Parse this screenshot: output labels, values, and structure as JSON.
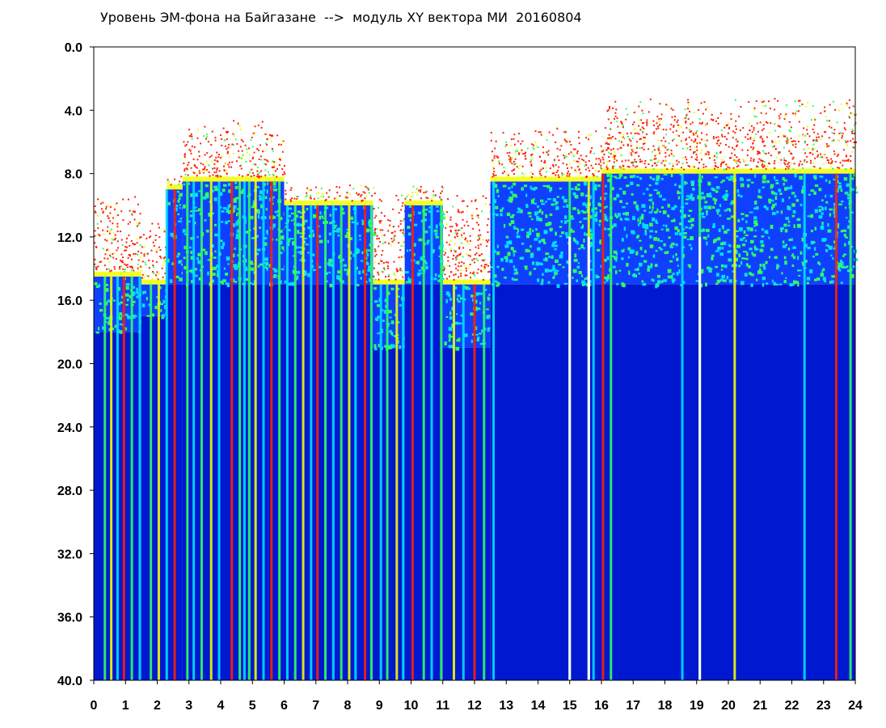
{
  "chart_data": {
    "type": "heatmap",
    "title": "Уровень ЭМ-фона на Байгазане  -->  модуль XY вектора МИ  20160804",
    "xlabel": "",
    "ylabel": "",
    "x_ticks": [
      "0",
      "1",
      "2",
      "3",
      "4",
      "5",
      "6",
      "7",
      "8",
      "9",
      "10",
      "11",
      "12",
      "13",
      "14",
      "15",
      "16",
      "17",
      "18",
      "19",
      "20",
      "21",
      "22",
      "23",
      "24"
    ],
    "y_ticks": [
      "0.0",
      "4.0",
      "8.0",
      "12.0",
      "16.0",
      "20.0",
      "24.0",
      "28.0",
      "32.0",
      "36.0",
      "40.0"
    ],
    "xlim": [
      0,
      24
    ],
    "ylim": [
      0,
      40
    ],
    "y_inverted": true,
    "colormap": [
      "#0018d0",
      "#1040ff",
      "#00e0ff",
      "#30ff60",
      "#f0ff00",
      "#ff2000"
    ],
    "background_color": "#ffffff",
    "regions": [
      {
        "x": [
          0,
          1.5
        ],
        "noise_top": 9.0,
        "green_top": 14.5,
        "blue_top": 18.0
      },
      {
        "x": [
          1.5,
          2.3
        ],
        "noise_top": 11.0,
        "green_top": 15.0,
        "blue_top": 17.0
      },
      {
        "x": [
          2.3,
          2.8
        ],
        "noise_top": 8.0,
        "green_top": 9.0,
        "blue_top": 15.0
      },
      {
        "x": [
          2.8,
          5.5
        ],
        "noise_top": 4.5,
        "green_top": 8.5,
        "blue_top": 15.0
      },
      {
        "x": [
          5.5,
          6.0
        ],
        "noise_top": 5.0,
        "green_top": 8.5,
        "blue_top": 15.0
      },
      {
        "x": [
          6.0,
          8.8
        ],
        "noise_top": 8.5,
        "green_top": 10.0,
        "blue_top": 15.0
      },
      {
        "x": [
          8.8,
          9.8
        ],
        "noise_top": 9.0,
        "green_top": 15.0,
        "blue_top": 19.0
      },
      {
        "x": [
          9.8,
          11.0
        ],
        "noise_top": 8.5,
        "green_top": 10.0,
        "blue_top": 15.0
      },
      {
        "x": [
          11.0,
          12.5
        ],
        "noise_top": 9.0,
        "green_top": 15.0,
        "blue_top": 19.0
      },
      {
        "x": [
          12.5,
          16.0
        ],
        "noise_top": 5.0,
        "green_top": 8.5,
        "blue_top": 15.0
      },
      {
        "x": [
          16.0,
          24.0
        ],
        "noise_top": 3.0,
        "green_top": 8.0,
        "blue_top": 15.0
      }
    ],
    "bright_stripes_x": [
      0.35,
      0.55,
      0.75,
      0.95,
      1.2,
      1.45,
      1.8,
      2.05,
      2.3,
      2.55,
      2.95,
      3.15,
      3.4,
      3.7,
      3.95,
      4.35,
      4.6,
      4.75,
      4.9,
      5.1,
      5.35,
      5.6,
      5.85,
      6.1,
      6.35,
      6.6,
      6.85,
      7.05,
      7.3,
      7.55,
      7.8,
      8.05,
      8.25,
      8.55,
      8.75,
      9.05,
      9.25,
      9.55,
      9.75,
      10.05,
      10.4,
      10.65,
      10.95,
      11.35,
      11.65,
      12.0,
      12.3,
      12.6,
      15.0,
      15.6,
      15.75,
      16.05,
      16.3,
      18.55,
      19.1,
      20.2,
      22.4,
      23.4,
      23.85
    ],
    "gap_stripes_x": [
      15.0,
      15.6,
      19.1
    ]
  }
}
